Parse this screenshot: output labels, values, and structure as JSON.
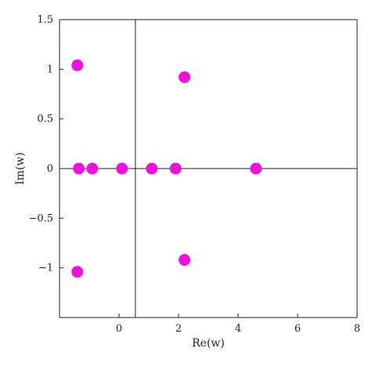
{
  "chart_data": {
    "type": "scatter",
    "xlabel": "Re(w)",
    "ylabel": "Im(w)",
    "xlim": [
      -2,
      8
    ],
    "ylim": [
      -1.5,
      1.5
    ],
    "x_ticks": [
      0,
      2,
      4,
      6,
      8
    ],
    "x_tick_labels": [
      "0",
      "2",
      "4",
      "6",
      "8"
    ],
    "y_ticks": [
      -1,
      -0.5,
      0,
      0.5,
      1,
      1.5
    ],
    "y_tick_labels": [
      "−1",
      "−0.5",
      "0",
      "0.5",
      "1",
      "1.5"
    ],
    "reference_lines": {
      "x": 0.55,
      "y": 0
    },
    "grid": false,
    "marker_color": "#ee11dd",
    "points": [
      {
        "x": -1.4,
        "y": 1.04
      },
      {
        "x": -1.35,
        "y": 0
      },
      {
        "x": -0.9,
        "y": 0
      },
      {
        "x": 0.1,
        "y": 0
      },
      {
        "x": 1.1,
        "y": 0
      },
      {
        "x": 1.9,
        "y": 0
      },
      {
        "x": 2.2,
        "y": 0.92
      },
      {
        "x": 4.6,
        "y": 0
      },
      {
        "x": 2.2,
        "y": -0.92
      },
      {
        "x": -1.4,
        "y": -1.04
      }
    ]
  }
}
